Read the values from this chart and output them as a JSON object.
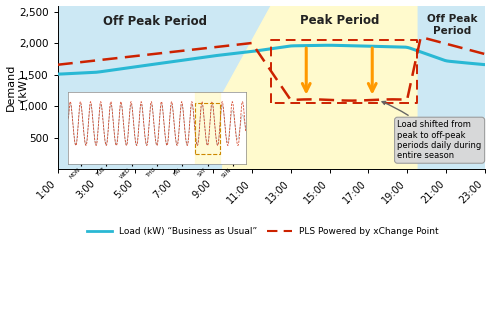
{
  "x_ticks": [
    "1:00",
    "3:00",
    "5:00",
    "7:00",
    "9:00",
    "11:00",
    "13:00",
    "15:00",
    "17:00",
    "19:00",
    "21:00",
    "23:00"
  ],
  "x_tick_positions": [
    1,
    3,
    5,
    7,
    9,
    11,
    13,
    15,
    17,
    19,
    21,
    23
  ],
  "xlim": [
    1,
    23
  ],
  "ylim": [
    0,
    2600
  ],
  "yticks": [
    500,
    1000,
    1500,
    2000,
    2500
  ],
  "ylabel": "Demand\n(kW)",
  "off_peak_1_start": 1,
  "peak_start": 12.0,
  "peak_end": 19.5,
  "off_peak_2_end": 23,
  "off_peak_color": "#cce8f4",
  "peak_color": "#fffacd",
  "bau_color": "#29b8d4",
  "pls_color": "#cc2200",
  "pls_dash": [
    6,
    3
  ],
  "orange_arrow_color": "#ff9900",
  "ann_box_color": "#d8d8d8",
  "ann_arrow_color": "#666666",
  "legend_bau": "Load (kW) “Business as Usual”",
  "legend_pls": "PLS Powered by xChange Point",
  "inset_bau_color": "#bbbbbb",
  "inset_pls_color": "#cc2200",
  "days": [
    "MON",
    "TUE",
    "WED",
    "THU",
    "FRI",
    "SAT",
    "SUN"
  ]
}
